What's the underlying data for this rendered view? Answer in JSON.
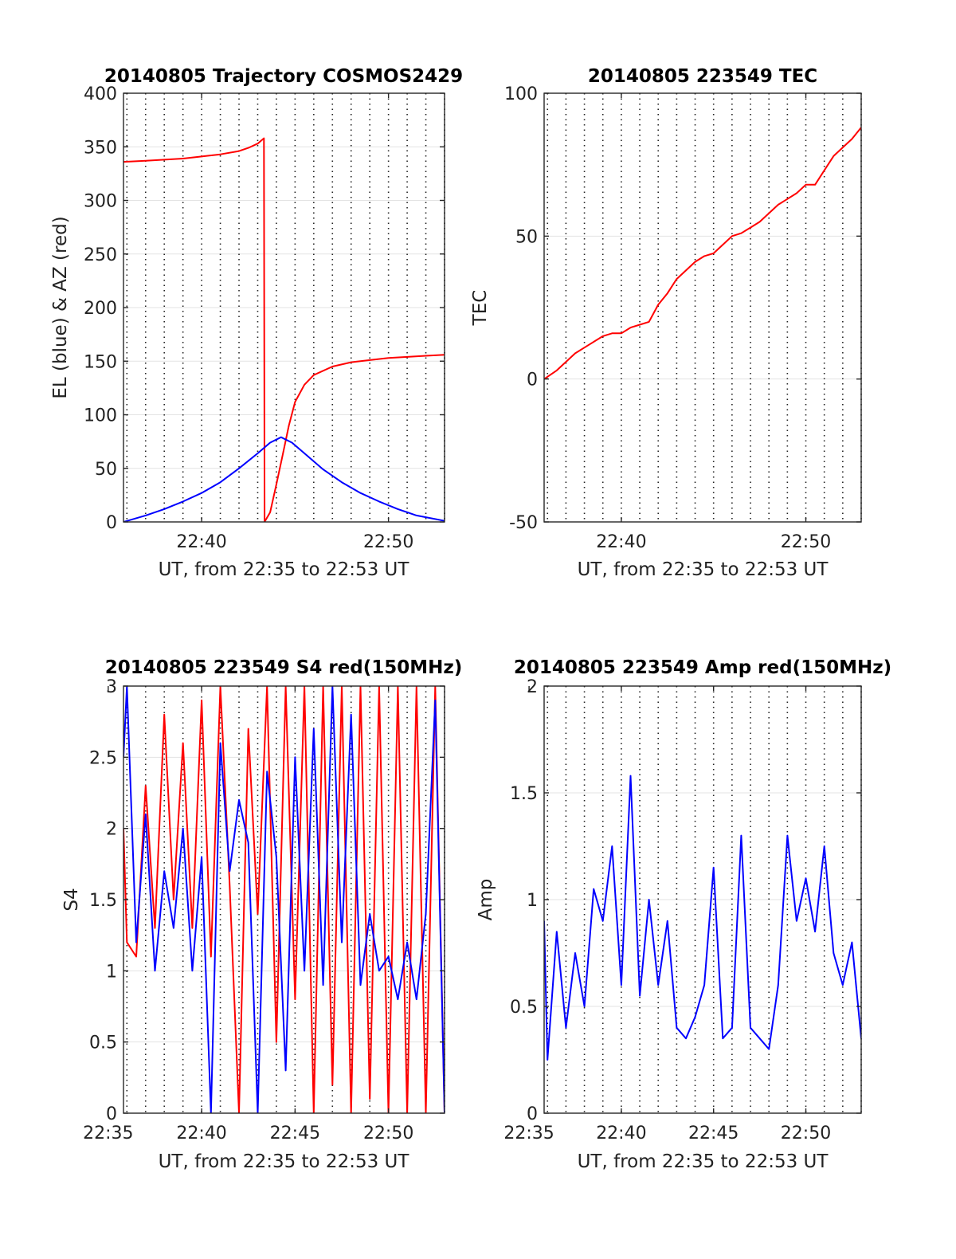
{
  "chart_data": [
    {
      "type": "line",
      "title": "20140805 Trajectory COSMOS2429",
      "xlabel": "UT, from 22:35 to 22:53 UT",
      "ylabel": "EL (blue) & AZ (red)",
      "xlim": [
        "22:35:49",
        "22:53:00"
      ],
      "ylim": [
        0,
        400
      ],
      "yticks": [
        "0",
        "50",
        "100",
        "150",
        "200",
        "250",
        "300",
        "350",
        "400"
      ],
      "xticks": [
        {
          "time": "22:40",
          "label": "22:40"
        },
        {
          "time": "22:50",
          "label": "22:50"
        }
      ],
      "grid": "horizontal solid, vertical dotted every minute",
      "series": [
        {
          "color": "#ff0000",
          "points": [
            [
              "22:35:49",
              336
            ],
            [
              "22:37:00",
              337
            ],
            [
              "22:38:00",
              338
            ],
            [
              "22:39:00",
              339
            ],
            [
              "22:40:00",
              341
            ],
            [
              "22:41:00",
              343
            ],
            [
              "22:42:00",
              346
            ],
            [
              "22:42:30",
              349
            ],
            [
              "22:43:00",
              353
            ],
            [
              "22:43:20",
              358
            ],
            [
              "22:43:22",
              0
            ],
            [
              "22:43:40",
              9
            ],
            [
              "22:44:00",
              35
            ],
            [
              "22:44:20",
              62
            ],
            [
              "22:44:40",
              90
            ],
            [
              "22:45:00",
              112
            ],
            [
              "22:45:30",
              128
            ],
            [
              "22:46:00",
              137
            ],
            [
              "22:47:00",
              145
            ],
            [
              "22:48:00",
              149
            ],
            [
              "22:49:00",
              151
            ],
            [
              "22:50:00",
              153
            ],
            [
              "22:51:00",
              154
            ],
            [
              "22:52:00",
              155
            ],
            [
              "22:53:00",
              156
            ]
          ]
        },
        {
          "color": "#0000ff",
          "points": [
            [
              "22:35:49",
              0
            ],
            [
              "22:37:00",
              6
            ],
            [
              "22:38:00",
              12
            ],
            [
              "22:39:00",
              19
            ],
            [
              "22:40:00",
              27
            ],
            [
              "22:41:00",
              37
            ],
            [
              "22:42:00",
              50
            ],
            [
              "22:43:00",
              64
            ],
            [
              "22:43:40",
              74
            ],
            [
              "22:44:15",
              79
            ],
            [
              "22:44:50",
              74
            ],
            [
              "22:45:30",
              64
            ],
            [
              "22:46:30",
              49
            ],
            [
              "22:47:30",
              37
            ],
            [
              "22:48:30",
              27
            ],
            [
              "22:49:30",
              19
            ],
            [
              "22:50:30",
              12
            ],
            [
              "22:51:30",
              6
            ],
            [
              "22:53:00",
              1
            ]
          ]
        }
      ]
    },
    {
      "type": "line",
      "title": "20140805 223549 TEC",
      "xlabel": "UT, from 22:35 to 22:53 UT",
      "ylabel": "TEC",
      "xlim": [
        "22:35:49",
        "22:53:00"
      ],
      "ylim": [
        -50,
        100
      ],
      "yticks": [
        "-50",
        "0",
        "50",
        "100"
      ],
      "xticks": [
        {
          "time": "22:40",
          "label": "22:40"
        },
        {
          "time": "22:50",
          "label": "22:50"
        }
      ],
      "grid": "horizontal solid, vertical dotted every minute",
      "series": [
        {
          "color": "#ff0000",
          "points": [
            [
              "22:35:49",
              0
            ],
            [
              "22:36:30",
              3
            ],
            [
              "22:37:00",
              6
            ],
            [
              "22:37:30",
              9
            ],
            [
              "22:38:00",
              11
            ],
            [
              "22:39:00",
              15
            ],
            [
              "22:39:30",
              16
            ],
            [
              "22:40:00",
              16
            ],
            [
              "22:40:30",
              18
            ],
            [
              "22:41:00",
              19
            ],
            [
              "22:41:30",
              20
            ],
            [
              "22:42:00",
              26
            ],
            [
              "22:42:30",
              30
            ],
            [
              "22:43:00",
              35
            ],
            [
              "22:43:30",
              38
            ],
            [
              "22:44:00",
              41
            ],
            [
              "22:44:30",
              43
            ],
            [
              "22:45:00",
              44
            ],
            [
              "22:45:30",
              47
            ],
            [
              "22:46:00",
              50
            ],
            [
              "22:46:30",
              51
            ],
            [
              "22:47:00",
              53
            ],
            [
              "22:47:30",
              55
            ],
            [
              "22:48:00",
              58
            ],
            [
              "22:48:30",
              61
            ],
            [
              "22:49:00",
              63
            ],
            [
              "22:49:30",
              65
            ],
            [
              "22:50:00",
              68
            ],
            [
              "22:50:30",
              68
            ],
            [
              "22:51:00",
              73
            ],
            [
              "22:51:30",
              78
            ],
            [
              "22:52:00",
              81
            ],
            [
              "22:52:30",
              84
            ],
            [
              "22:53:00",
              88
            ]
          ]
        }
      ]
    },
    {
      "type": "line",
      "title": "20140805 223549 S4 red(150MHz)",
      "xlabel": "UT, from 22:35 to 22:53 UT",
      "ylabel": "S4",
      "xlim": [
        "22:35:49",
        "22:53:00"
      ],
      "ylim": [
        0,
        3
      ],
      "yticks": [
        "0",
        "0.5",
        "1",
        "1.5",
        "2",
        "2.5",
        "3"
      ],
      "xticks": [
        {
          "time": "22:35",
          "label": "22:35"
        },
        {
          "time": "22:40",
          "label": "22:40"
        },
        {
          "time": "22:45",
          "label": "22:45"
        },
        {
          "time": "22:50",
          "label": "22:50"
        }
      ],
      "grid": "horizontal solid, vertical dotted every minute",
      "series": [
        {
          "color": "#ff0000",
          "points": [
            [
              "22:35:49",
              2.0
            ],
            [
              "22:36:00",
              1.2
            ],
            [
              "22:36:30",
              1.1
            ],
            [
              "22:37:00",
              2.3
            ],
            [
              "22:37:30",
              1.3
            ],
            [
              "22:38:00",
              2.8
            ],
            [
              "22:38:30",
              1.5
            ],
            [
              "22:39:00",
              2.6
            ],
            [
              "22:39:30",
              1.3
            ],
            [
              "22:40:00",
              2.9
            ],
            [
              "22:40:30",
              1.1
            ],
            [
              "22:41:00",
              3.0
            ],
            [
              "22:41:30",
              1.6
            ],
            [
              "22:42:00",
              0.0
            ],
            [
              "22:42:30",
              2.7
            ],
            [
              "22:43:00",
              1.4
            ],
            [
              "22:43:30",
              3.0
            ],
            [
              "22:44:00",
              0.5
            ],
            [
              "22:44:30",
              3.0
            ],
            [
              "22:45:00",
              0.8
            ],
            [
              "22:45:30",
              3.0
            ],
            [
              "22:46:00",
              0.0
            ],
            [
              "22:46:30",
              3.0
            ],
            [
              "22:47:00",
              0.2
            ],
            [
              "22:47:30",
              3.0
            ],
            [
              "22:48:00",
              0.0
            ],
            [
              "22:48:30",
              3.0
            ],
            [
              "22:49:00",
              0.1
            ],
            [
              "22:49:30",
              3.0
            ],
            [
              "22:50:00",
              0.0
            ],
            [
              "22:50:30",
              3.0
            ],
            [
              "22:51:00",
              0.0
            ],
            [
              "22:51:30",
              3.0
            ],
            [
              "22:52:00",
              0.0
            ],
            [
              "22:52:30",
              3.0
            ],
            [
              "22:53:00",
              0.0
            ]
          ]
        },
        {
          "color": "#0000ff",
          "points": [
            [
              "22:35:49",
              2.5
            ],
            [
              "22:36:00",
              3.0
            ],
            [
              "22:36:30",
              1.2
            ],
            [
              "22:37:00",
              2.1
            ],
            [
              "22:37:30",
              1.0
            ],
            [
              "22:38:00",
              1.7
            ],
            [
              "22:38:30",
              1.3
            ],
            [
              "22:39:00",
              2.0
            ],
            [
              "22:39:30",
              1.0
            ],
            [
              "22:40:00",
              1.8
            ],
            [
              "22:40:30",
              0.0
            ],
            [
              "22:41:00",
              2.6
            ],
            [
              "22:41:30",
              1.7
            ],
            [
              "22:42:00",
              2.2
            ],
            [
              "22:42:30",
              1.9
            ],
            [
              "22:43:00",
              0.0
            ],
            [
              "22:43:30",
              2.4
            ],
            [
              "22:44:00",
              1.8
            ],
            [
              "22:44:30",
              0.3
            ],
            [
              "22:45:00",
              2.5
            ],
            [
              "22:45:30",
              1.0
            ],
            [
              "22:46:00",
              2.7
            ],
            [
              "22:46:30",
              0.9
            ],
            [
              "22:47:00",
              3.0
            ],
            [
              "22:47:30",
              1.2
            ],
            [
              "22:48:00",
              2.8
            ],
            [
              "22:48:30",
              0.9
            ],
            [
              "22:49:00",
              1.4
            ],
            [
              "22:49:30",
              1.0
            ],
            [
              "22:50:00",
              1.1
            ],
            [
              "22:50:30",
              0.8
            ],
            [
              "22:51:00",
              1.2
            ],
            [
              "22:51:30",
              0.8
            ],
            [
              "22:52:00",
              1.4
            ],
            [
              "22:52:30",
              2.9
            ],
            [
              "22:53:00",
              0.0
            ]
          ]
        }
      ]
    },
    {
      "type": "line",
      "title": "20140805 223549 Amp red(150MHz)",
      "xlabel": "UT, from 22:35 to 22:53 UT",
      "ylabel": "Amp",
      "xlim": [
        "22:35:49",
        "22:53:00"
      ],
      "ylim": [
        0,
        2
      ],
      "yticks": [
        "0",
        "0.5",
        "1",
        "1.5",
        "2"
      ],
      "xticks": [
        {
          "time": "22:35",
          "label": "22:35"
        },
        {
          "time": "22:40",
          "label": "22:40"
        },
        {
          "time": "22:45",
          "label": "22:45"
        },
        {
          "time": "22:50",
          "label": "22:50"
        }
      ],
      "grid": "horizontal solid, vertical dotted every minute",
      "series": [
        {
          "color": "#0000ff",
          "points": [
            [
              "22:35:49",
              0.9
            ],
            [
              "22:36:00",
              0.25
            ],
            [
              "22:36:30",
              0.85
            ],
            [
              "22:37:00",
              0.4
            ],
            [
              "22:37:30",
              0.75
            ],
            [
              "22:38:00",
              0.5
            ],
            [
              "22:38:30",
              1.05
            ],
            [
              "22:39:00",
              0.9
            ],
            [
              "22:39:30",
              1.25
            ],
            [
              "22:40:00",
              0.6
            ],
            [
              "22:40:30",
              1.58
            ],
            [
              "22:41:00",
              0.55
            ],
            [
              "22:41:30",
              1.0
            ],
            [
              "22:42:00",
              0.6
            ],
            [
              "22:42:30",
              0.9
            ],
            [
              "22:43:00",
              0.4
            ],
            [
              "22:43:30",
              0.35
            ],
            [
              "22:44:00",
              0.45
            ],
            [
              "22:44:30",
              0.6
            ],
            [
              "22:45:00",
              1.15
            ],
            [
              "22:45:30",
              0.35
            ],
            [
              "22:46:00",
              0.4
            ],
            [
              "22:46:30",
              1.3
            ],
            [
              "22:47:00",
              0.4
            ],
            [
              "22:47:30",
              0.35
            ],
            [
              "22:48:00",
              0.3
            ],
            [
              "22:48:30",
              0.6
            ],
            [
              "22:49:00",
              1.3
            ],
            [
              "22:49:30",
              0.9
            ],
            [
              "22:50:00",
              1.1
            ],
            [
              "22:50:30",
              0.85
            ],
            [
              "22:51:00",
              1.25
            ],
            [
              "22:51:30",
              0.75
            ],
            [
              "22:52:00",
              0.6
            ],
            [
              "22:52:30",
              0.8
            ],
            [
              "22:53:00",
              0.35
            ]
          ]
        }
      ]
    }
  ]
}
